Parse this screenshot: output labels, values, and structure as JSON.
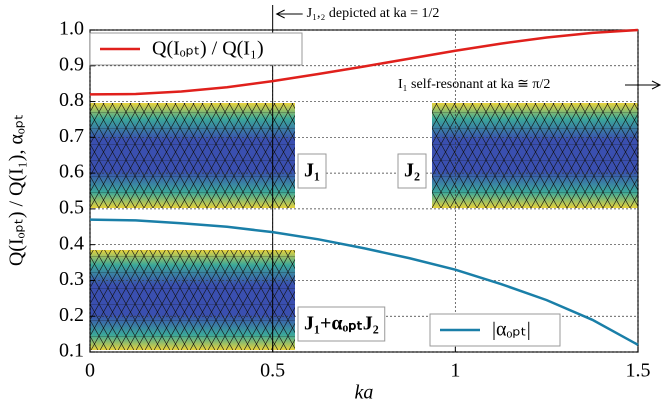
{
  "chart_data": {
    "type": "line",
    "xlabel": "ka",
    "ylabel": "Q(Iₒₚₜ) / Q(I₁),  αₒₚₜ",
    "x": [
      0,
      0.125,
      0.25,
      0.375,
      0.5,
      0.625,
      0.75,
      0.875,
      1.0,
      1.125,
      1.25,
      1.375,
      1.5
    ],
    "series": [
      {
        "name": "Q(Iₒₚₜ) / Q(I₁)",
        "color": "#e0201c",
        "values": [
          0.82,
          0.821,
          0.828,
          0.84,
          0.857,
          0.877,
          0.898,
          0.92,
          0.942,
          0.962,
          0.979,
          0.992,
          1.0
        ]
      },
      {
        "name": "|αₒₚₜ|",
        "color": "#1a7fa8",
        "values": [
          0.47,
          0.468,
          0.46,
          0.45,
          0.435,
          0.415,
          0.39,
          0.362,
          0.33,
          0.29,
          0.245,
          0.19,
          0.12
        ]
      }
    ],
    "xlim": [
      0,
      1.5
    ],
    "xticks": [
      0,
      0.5,
      1,
      1.5
    ],
    "ylim": [
      0.1,
      1.0
    ],
    "yticks": [
      0.1,
      0.2,
      0.3,
      0.4,
      0.5,
      0.6,
      0.7,
      0.8,
      0.9,
      {
        "value": 1.0,
        "label": "1.0"
      }
    ],
    "grid": true,
    "annotations": [
      "J₁,₂ depicted at ka = 1/2",
      "I₁ self-resonant at ka ≅ π/2"
    ],
    "inset_labels": [
      "J₁",
      "J₂",
      "J₁+αₒₚₜJ₂"
    ]
  }
}
